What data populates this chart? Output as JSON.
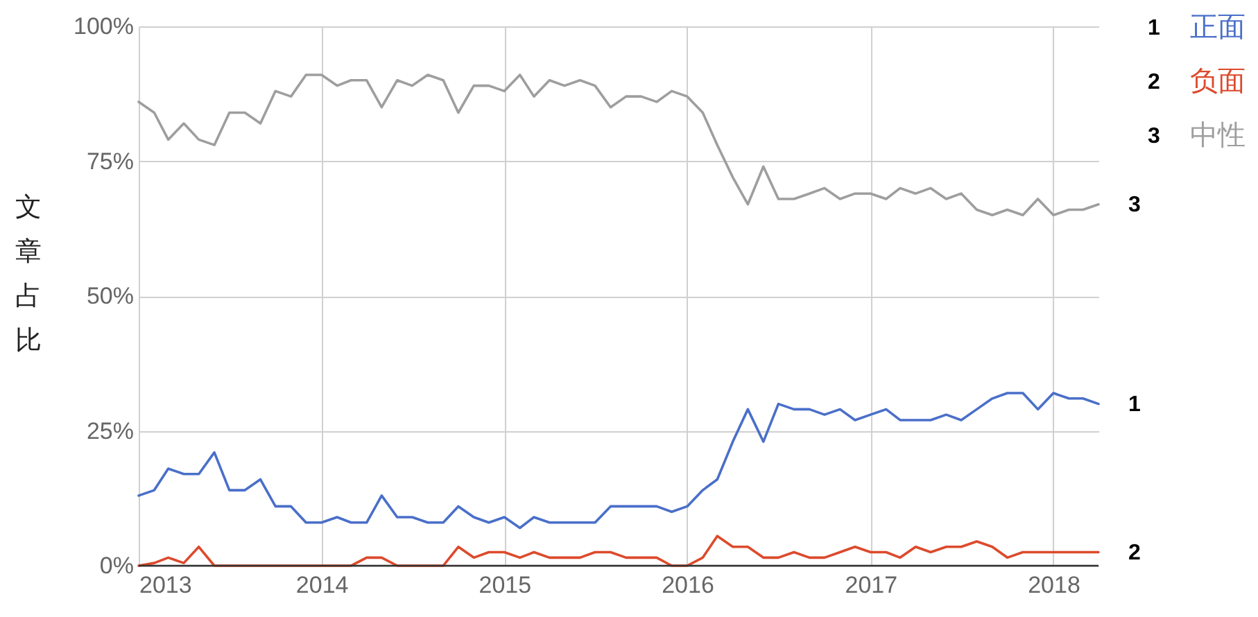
{
  "chart_data": {
    "type": "line",
    "ylabel": "文章占比",
    "x": [
      "2013-01",
      "2013-02",
      "2013-03",
      "2013-04",
      "2013-05",
      "2013-06",
      "2013-07",
      "2013-08",
      "2013-09",
      "2013-10",
      "2013-11",
      "2013-12",
      "2014-01",
      "2014-02",
      "2014-03",
      "2014-04",
      "2014-05",
      "2014-06",
      "2014-07",
      "2014-08",
      "2014-09",
      "2014-10",
      "2014-11",
      "2014-12",
      "2015-01",
      "2015-02",
      "2015-03",
      "2015-04",
      "2015-05",
      "2015-06",
      "2015-07",
      "2015-08",
      "2015-09",
      "2015-10",
      "2015-11",
      "2015-12",
      "2016-01",
      "2016-02",
      "2016-03",
      "2016-04",
      "2016-05",
      "2016-06",
      "2016-07",
      "2016-08",
      "2016-09",
      "2016-10",
      "2016-11",
      "2016-12",
      "2017-01",
      "2017-02",
      "2017-03",
      "2017-04",
      "2017-05",
      "2017-06",
      "2017-07",
      "2017-08",
      "2017-09",
      "2017-10",
      "2017-11",
      "2017-12",
      "2018-01",
      "2018-02",
      "2018-03",
      "2018-04"
    ],
    "series": [
      {
        "name": "正面",
        "color": "#4a6fc9",
        "values": [
          13,
          14,
          18,
          17,
          17,
          21,
          14,
          14,
          16,
          11,
          11,
          8,
          8,
          9,
          8,
          8,
          13,
          9,
          9,
          8,
          8,
          11,
          9,
          8,
          9,
          7,
          9,
          8,
          8,
          8,
          8,
          11,
          11,
          11,
          11,
          10,
          11,
          14,
          16,
          23,
          29,
          23,
          30,
          29,
          29,
          28,
          29,
          27,
          28,
          29,
          27,
          27,
          27,
          28,
          27,
          29,
          31,
          32,
          32,
          29,
          32,
          31,
          31,
          30
        ]
      },
      {
        "name": "负面",
        "color": "#dc4a2c",
        "values": [
          0,
          0.5,
          1.5,
          0.5,
          3.5,
          0,
          0,
          0,
          0,
          0,
          0,
          0,
          0,
          0,
          0,
          1.5,
          1.5,
          0,
          0,
          0,
          0,
          3.5,
          1.5,
          2.5,
          2.5,
          1.5,
          2.5,
          1.5,
          1.5,
          1.5,
          2.5,
          2.5,
          1.5,
          1.5,
          1.5,
          0,
          0,
          1.5,
          5.5,
          3.5,
          3.5,
          1.5,
          1.5,
          2.5,
          1.5,
          1.5,
          2.5,
          3.5,
          2.5,
          2.5,
          1.5,
          3.5,
          2.5,
          3.5,
          3.5,
          4.5,
          3.5,
          1.5,
          2.5,
          2.5,
          2.5,
          2.5,
          2.5,
          2.5
        ]
      },
      {
        "name": "中性",
        "color": "#9e9e9e",
        "values": [
          86,
          84,
          79,
          82,
          79,
          78,
          84,
          84,
          82,
          88,
          87,
          91,
          91,
          89,
          90,
          90,
          85,
          90,
          89,
          91,
          90,
          84,
          89,
          89,
          88,
          91,
          87,
          90,
          89,
          90,
          89,
          85,
          87,
          87,
          86,
          88,
          87,
          84,
          78,
          72,
          67,
          74,
          68,
          68,
          69,
          70,
          68,
          69,
          69,
          68,
          70,
          69,
          70,
          68,
          69,
          66,
          65,
          66,
          65,
          68,
          65,
          66,
          66,
          67
        ]
      }
    ],
    "annotations": [
      {
        "text": "1",
        "x": "2018-04",
        "y": 30
      },
      {
        "text": "2",
        "x": "2018-04",
        "y": 2.5
      },
      {
        "text": "3",
        "x": "2018-04",
        "y": 67
      }
    ],
    "xlim": [
      "2013-01",
      "2018-04"
    ],
    "xticks": [
      "2013",
      "2014",
      "2015",
      "2016",
      "2017",
      "2018"
    ],
    "ylim": [
      0,
      100
    ],
    "yticks": [
      {
        "value": 0,
        "label": "0%"
      },
      {
        "value": 25,
        "label": "25%"
      },
      {
        "value": 50,
        "label": "50%"
      },
      {
        "value": 75,
        "label": "75%"
      },
      {
        "value": 100,
        "label": "100%"
      }
    ],
    "grid": true,
    "legend": "top right",
    "line_style": "solid"
  }
}
